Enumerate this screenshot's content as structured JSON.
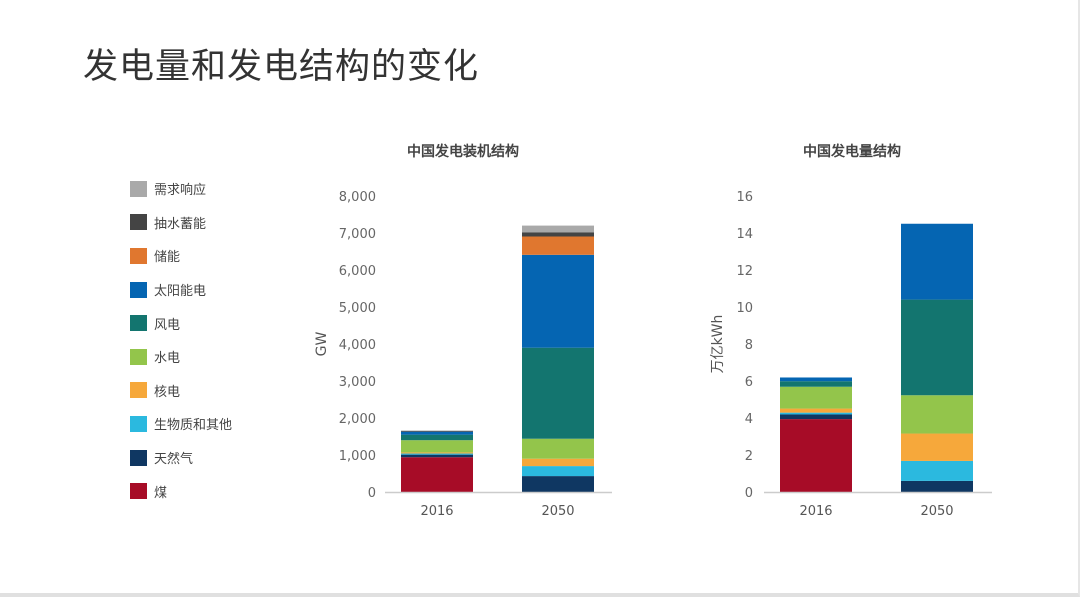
{
  "page_title": "发电量和发电结构的变化",
  "legend": [
    {
      "name": "需求响应",
      "color": "#a9a9a9"
    },
    {
      "name": "抽水蓄能",
      "color": "#444444"
    },
    {
      "name": "储能",
      "color": "#e0772f"
    },
    {
      "name": "太阳能电",
      "color": "#0565b2"
    },
    {
      "name": "风电",
      "color": "#13756f"
    },
    {
      "name": "水电",
      "color": "#93c54b"
    },
    {
      "name": "核电",
      "color": "#f6a83b"
    },
    {
      "name": "生物质和其他",
      "color": "#2bb9df"
    },
    {
      "name": "天然气",
      "color": "#0f3762"
    },
    {
      "name": "煤",
      "color": "#a70c27"
    }
  ],
  "chart_data": [
    {
      "type": "bar",
      "stacked": true,
      "title": "中国发电装机结构",
      "ylabel": "GW",
      "ylim": [
        0,
        8000
      ],
      "yticks": [
        "0",
        "1,000",
        "2,000",
        "3,000",
        "4,000",
        "5,000",
        "6,000",
        "7,000",
        "8,000"
      ],
      "categories": [
        "2016",
        "2050"
      ],
      "series": [
        {
          "name": "煤",
          "values": [
            940,
            0
          ]
        },
        {
          "name": "天然气",
          "values": [
            70,
            430
          ]
        },
        {
          "name": "生物质和其他",
          "values": [
            30,
            270
          ]
        },
        {
          "name": "核电",
          "values": [
            30,
            200
          ]
        },
        {
          "name": "水电",
          "values": [
            330,
            540
          ]
        },
        {
          "name": "风电",
          "values": [
            150,
            2460
          ]
        },
        {
          "name": "太阳能电",
          "values": [
            80,
            2510
          ]
        },
        {
          "name": "储能",
          "values": [
            0,
            495
          ]
        },
        {
          "name": "抽水蓄能",
          "values": [
            25,
            115
          ]
        },
        {
          "name": "需求响应",
          "values": [
            0,
            180
          ]
        }
      ]
    },
    {
      "type": "bar",
      "stacked": true,
      "title": "中国发电量结构",
      "ylabel": "万亿kWh",
      "ylim": [
        0,
        16
      ],
      "yticks": [
        "0",
        "2",
        "4",
        "6",
        "8",
        "10",
        "12",
        "14",
        "16"
      ],
      "categories": [
        "2016",
        "2050"
      ],
      "series": [
        {
          "name": "煤",
          "values": [
            3.94,
            0
          ]
        },
        {
          "name": "天然气",
          "values": [
            0.25,
            0.6
          ]
        },
        {
          "name": "生物质和其他",
          "values": [
            0.1,
            1.08
          ]
        },
        {
          "name": "核电",
          "values": [
            0.22,
            1.48
          ]
        },
        {
          "name": "水电",
          "values": [
            1.18,
            2.07
          ]
        },
        {
          "name": "风电",
          "values": [
            0.3,
            5.17
          ]
        },
        {
          "name": "太阳能电",
          "values": [
            0.2,
            4.1
          ]
        },
        {
          "name": "储能",
          "values": [
            0,
            0
          ]
        },
        {
          "name": "抽水蓄能",
          "values": [
            0,
            0
          ]
        },
        {
          "name": "需求响应",
          "values": [
            0,
            0
          ]
        }
      ]
    }
  ]
}
